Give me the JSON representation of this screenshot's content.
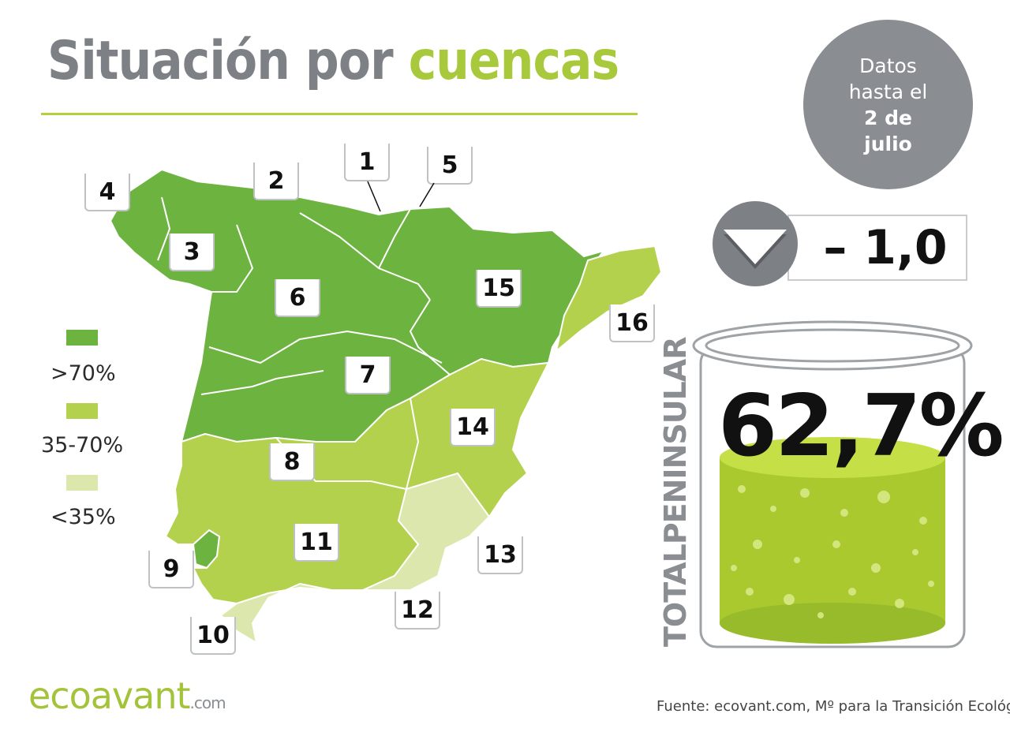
{
  "header": {
    "title_part1": "Situación por",
    "title_part2": "cuencas"
  },
  "date_badge": {
    "line1": "Datos",
    "line2": "hasta el",
    "line3": "2 de",
    "line4": "julio"
  },
  "change": {
    "value": "– 1,0",
    "direction": "down"
  },
  "total": {
    "label": "TOTALPENINSULAR",
    "value": "62,7%",
    "fill_fraction": 0.627
  },
  "legend": {
    "items": [
      {
        "label": ">70%",
        "color": "#6db33f"
      },
      {
        "label": "35-70%",
        "color": "#b3d14c"
      },
      {
        "label": "<35%",
        "color": "#dbe7ad"
      }
    ]
  },
  "basins": [
    {
      "id": "1"
    },
    {
      "id": "2"
    },
    {
      "id": "3"
    },
    {
      "id": "4"
    },
    {
      "id": "5"
    },
    {
      "id": "6"
    },
    {
      "id": "7"
    },
    {
      "id": "8"
    },
    {
      "id": "9"
    },
    {
      "id": "10"
    },
    {
      "id": "11"
    },
    {
      "id": "12"
    },
    {
      "id": "13"
    },
    {
      "id": "14"
    },
    {
      "id": "15"
    },
    {
      "id": "16"
    }
  ],
  "footer": {
    "logo_main": "ecoavant",
    "logo_tld": ".com",
    "source": "Fuente: ecovant.com, Mº para la Transición Ecológica"
  },
  "colors": {
    "accent": "#a7c93b",
    "grey": "#7d8185",
    "high": "#6db33f",
    "mid": "#b3d14c",
    "low": "#dbe7ad"
  }
}
